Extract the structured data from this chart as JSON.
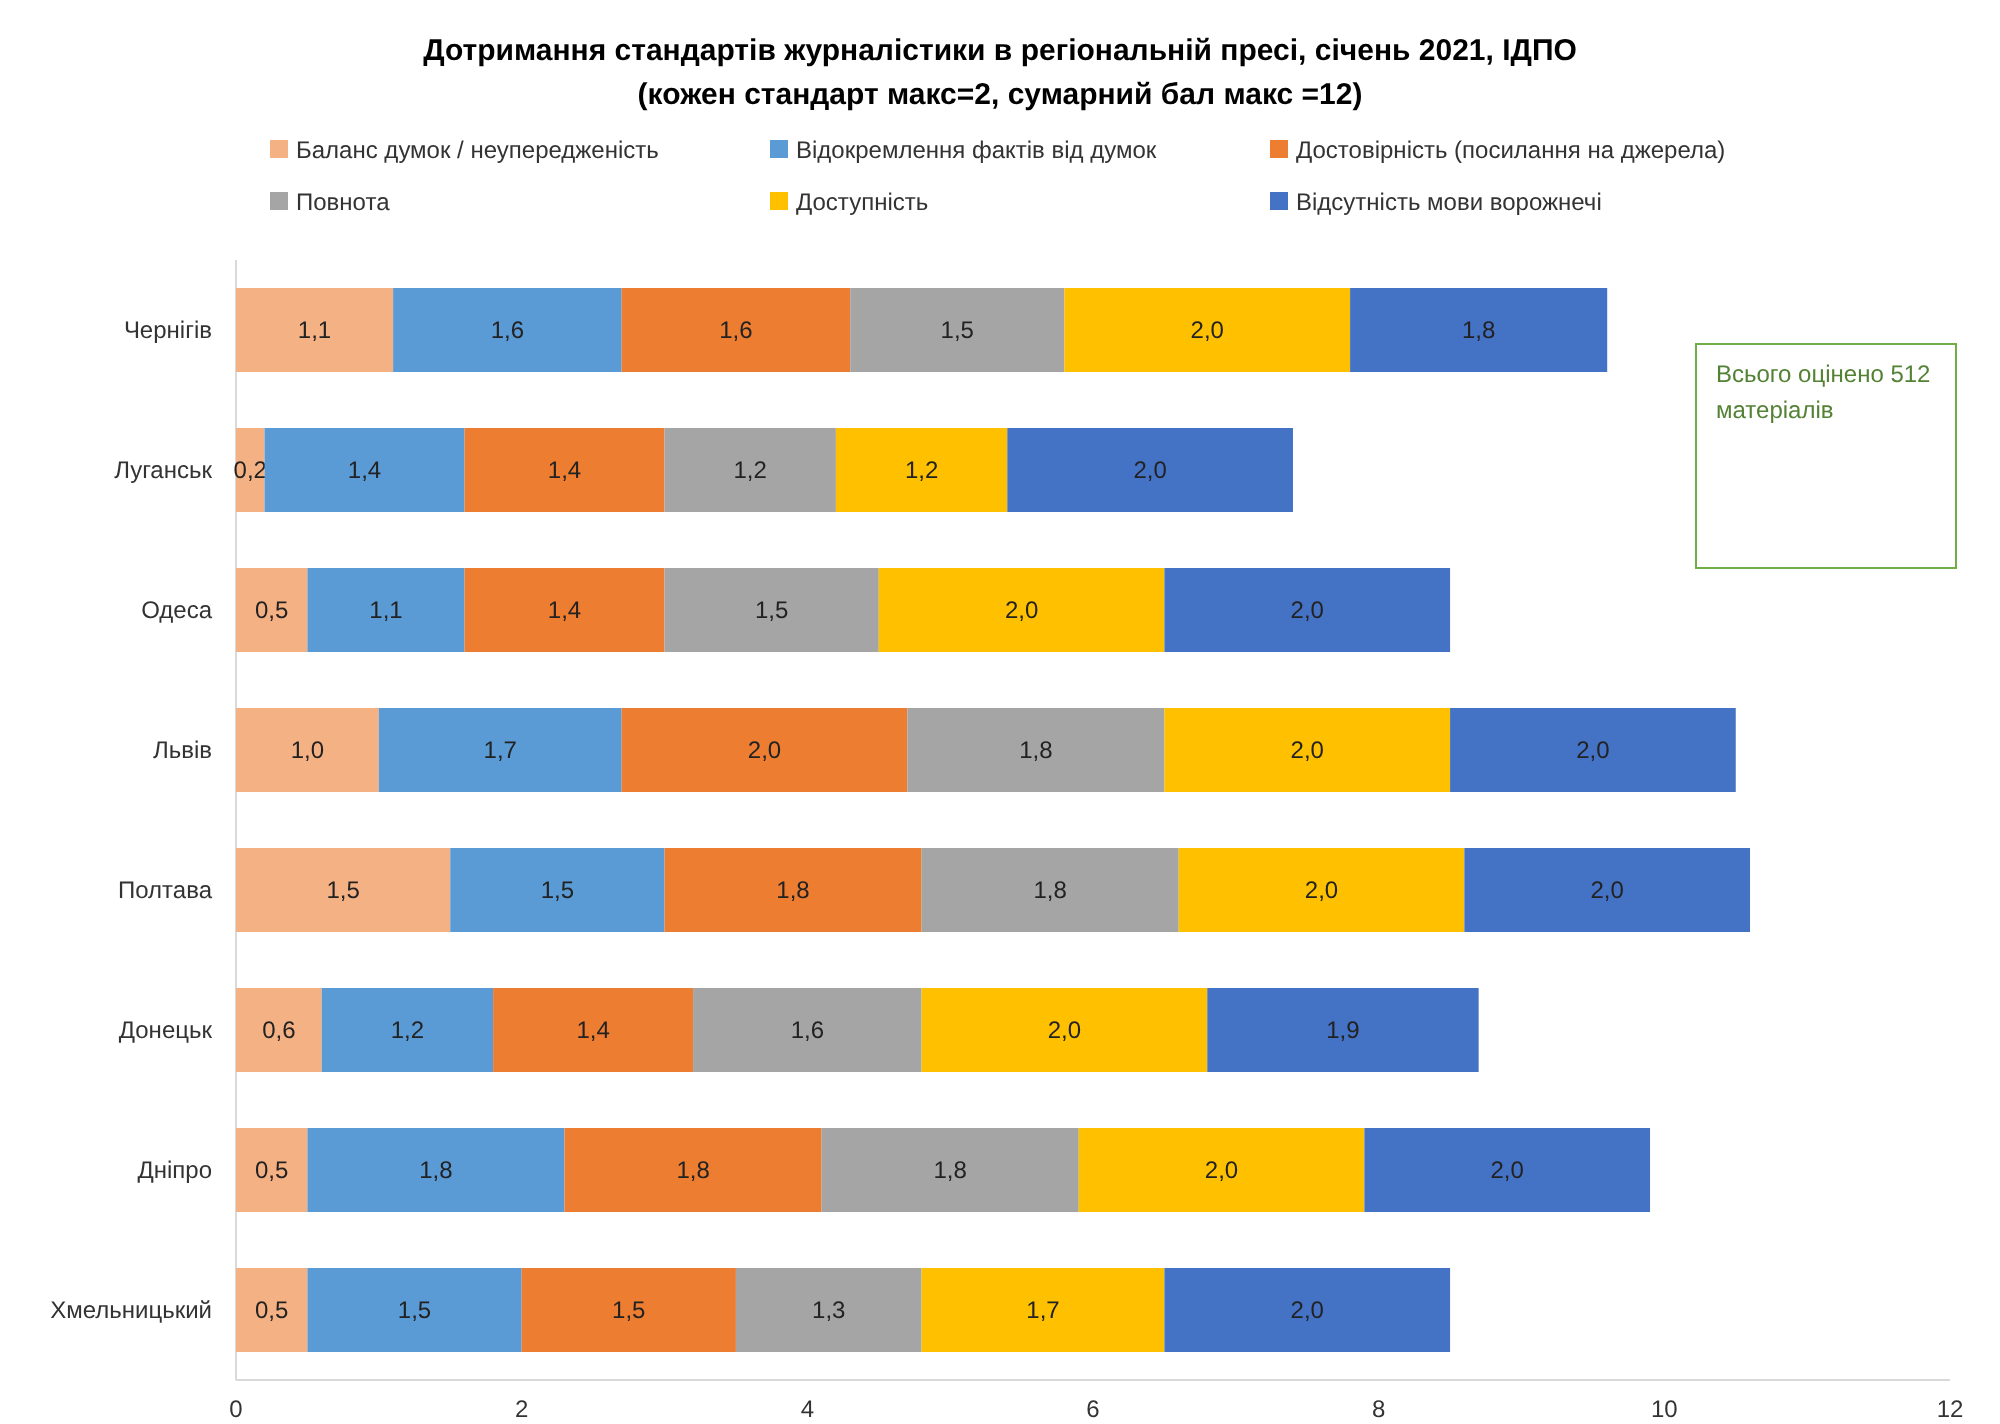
{
  "chart_data": {
    "type": "bar",
    "orientation": "horizontal",
    "stacked": true,
    "title": "Дотримання стандартів журналістики в регіональній пресі, січень 2021, ІДПО",
    "subtitle": "(кожен стандарт макс=2, сумарний бал макс =12)",
    "categories": [
      "Чернігів",
      "Луганськ",
      "Одеса",
      "Львів",
      "Полтава",
      "Донецьк",
      "Дніпро",
      "Хмельницький"
    ],
    "series": [
      {
        "name": "Баланс думок / неупередженість",
        "color": "#f4b183",
        "values": [
          1.1,
          0.2,
          0.5,
          1.0,
          1.5,
          0.6,
          0.5,
          0.5
        ],
        "value_labels": [
          "1,1",
          "0,2",
          "0,5",
          "1,0",
          "1,5",
          "0,6",
          "0,5",
          "0,5"
        ]
      },
      {
        "name": "Відокремлення фактів від думок",
        "color": "#5b9bd5",
        "values": [
          1.6,
          1.4,
          1.1,
          1.7,
          1.5,
          1.2,
          1.8,
          1.5
        ],
        "value_labels": [
          "1,6",
          "1,4",
          "1,1",
          "1,7",
          "1,5",
          "1,2",
          "1,8",
          "1,5"
        ]
      },
      {
        "name": "Достовірність (посилання на джерела)",
        "color": "#ed7d31",
        "values": [
          1.6,
          1.4,
          1.4,
          2.0,
          1.8,
          1.4,
          1.8,
          1.5
        ],
        "value_labels": [
          "1,6",
          "1,4",
          "1,4",
          "2,0",
          "1,8",
          "1,4",
          "1,8",
          "1,5"
        ]
      },
      {
        "name": "Повнота",
        "color": "#a5a5a5",
        "values": [
          1.5,
          1.2,
          1.5,
          1.8,
          1.8,
          1.6,
          1.8,
          1.3
        ],
        "value_labels": [
          "1,5",
          "1,2",
          "1,5",
          "1,8",
          "1,8",
          "1,6",
          "1,8",
          "1,3"
        ]
      },
      {
        "name": "Доступність",
        "color": "#ffc000",
        "values": [
          2.0,
          1.2,
          2.0,
          2.0,
          2.0,
          2.0,
          2.0,
          1.7
        ],
        "value_labels": [
          "2,0",
          "1,2",
          "2,0",
          "2,0",
          "2,0",
          "2,0",
          "2,0",
          "1,7"
        ]
      },
      {
        "name": "Відсутність мови ворожнечі",
        "color": "#4472c4",
        "values": [
          1.8,
          2.0,
          2.0,
          2.0,
          2.0,
          1.9,
          2.0,
          2.0
        ],
        "value_labels": [
          "1,8",
          "2,0",
          "2,0",
          "2,0",
          "2,0",
          "1,9",
          "2,0",
          "2,0"
        ]
      }
    ],
    "xlim": [
      0,
      12
    ],
    "xticks": [
      0,
      2,
      4,
      6,
      8,
      10,
      12
    ],
    "grid": false,
    "legend": "top",
    "annotations": [
      "Всього оцінено 512 матеріалів"
    ]
  }
}
